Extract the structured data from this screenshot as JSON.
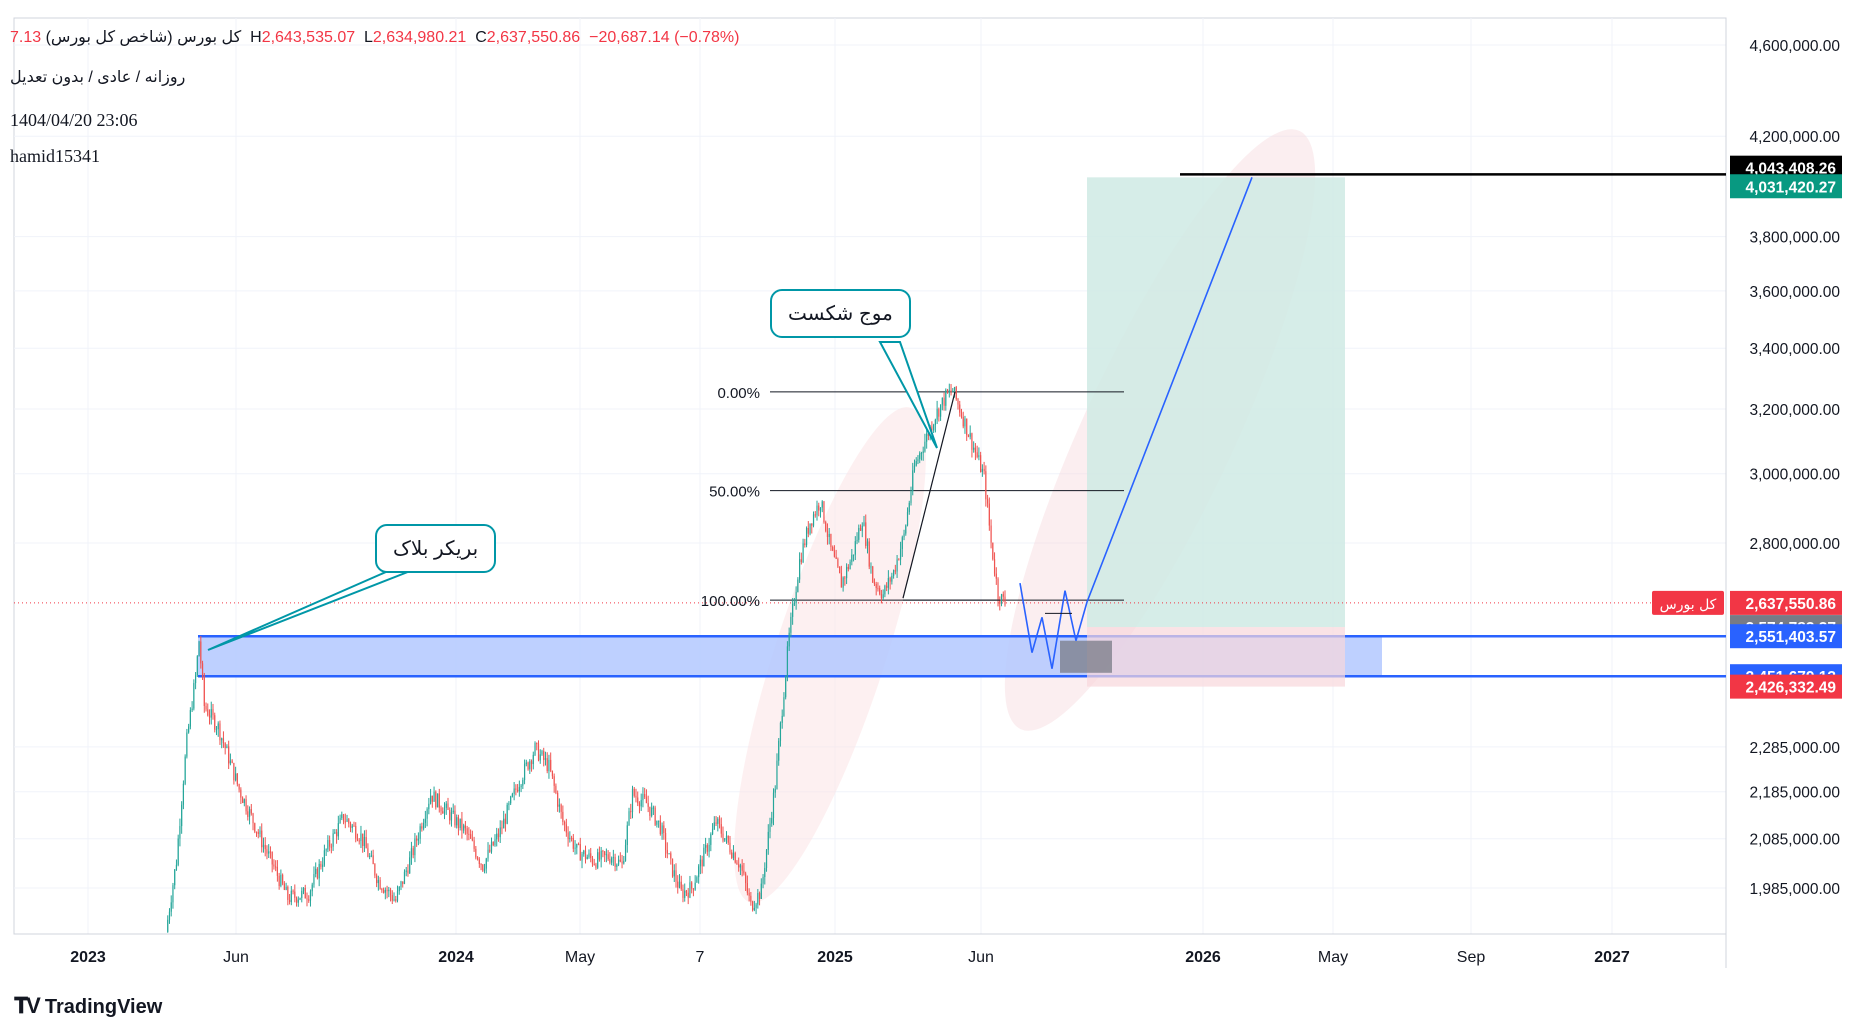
{
  "header": {
    "symbol_name": "کل بورس (شاخص کل بورس)",
    "open_fragment": "7.13",
    "high_label": "H",
    "high": "2,643,535.07",
    "low_label": "L",
    "low": "2,634,980.21",
    "close_label": "C",
    "close": "2,637,550.86",
    "change": "−20,687.14 (−0.78%)",
    "interval_line": "روزانه / عادی / بدون تعدیل",
    "datetime": "1404/04/20 23:06",
    "author": "hamid15341"
  },
  "annotations": {
    "breaker_block": "بریکر بلاک",
    "break_wave": "موج شکست"
  },
  "branding": {
    "logo_text": "TradingView"
  },
  "colors": {
    "up": "#26a69a",
    "down": "#ef5350",
    "price_line": "#f23645",
    "zone_fill": "#b3c8ff",
    "zone_border": "#2962ff",
    "target_fill": "#cfeae4",
    "stop_fill": "#f8d7dc",
    "projection": "#2962ff",
    "callout_border": "#0097a7"
  },
  "chart_data": {
    "type": "candlestick",
    "y_scale": "log",
    "ylim": [
      1910000,
      4800000
    ],
    "y_ticks": [
      {
        "value": 4600000,
        "label": "4,600,000.00"
      },
      {
        "value": 4200000,
        "label": "4,200,000.00"
      },
      {
        "value": 3800000,
        "label": "3,800,000.00"
      },
      {
        "value": 3600000,
        "label": "3,600,000.00"
      },
      {
        "value": 3400000,
        "label": "3,400,000.00"
      },
      {
        "value": 3200000,
        "label": "3,200,000.00"
      },
      {
        "value": 3000000,
        "label": "3,000,000.00"
      },
      {
        "value": 2800000,
        "label": "2,800,000.00"
      },
      {
        "value": 2285000,
        "label": "2,285,000.00"
      },
      {
        "value": 2185000,
        "label": "2,185,000.00"
      },
      {
        "value": 2085000,
        "label": "2,085,000.00"
      },
      {
        "value": 1985000,
        "label": "1,985,000.00"
      }
    ],
    "x_ticks": [
      {
        "label": "2023",
        "bold": true
      },
      {
        "label": "Jun",
        "bold": false
      },
      {
        "label": "2024",
        "bold": true
      },
      {
        "label": "May",
        "bold": false
      },
      {
        "label": "7",
        "bold": false
      },
      {
        "label": "2025",
        "bold": true
      },
      {
        "label": "Jun",
        "bold": false
      },
      {
        "label": "2026",
        "bold": true
      },
      {
        "label": "May",
        "bold": false
      },
      {
        "label": "Sep",
        "bold": false
      },
      {
        "label": "2027",
        "bold": true
      }
    ],
    "last_price": {
      "label": "کل بورس",
      "value": "2,637,550.86",
      "raw": 2637550.86
    },
    "price_badges": [
      {
        "value": "4,043,408.26",
        "raw": 4043408.26,
        "color": "#000000"
      },
      {
        "value": "4,031,420.27",
        "raw": 4031420.27,
        "color": "#089981"
      },
      {
        "value": "2,574,783.37",
        "raw": 2574783.37,
        "color": "#787b86"
      },
      {
        "value": "2,551,403.57",
        "raw": 2551403.57,
        "color": "#2962ff"
      },
      {
        "value": "2,451,679.13",
        "raw": 2451679.13,
        "color": "#2962ff"
      },
      {
        "value": "2,426,332.49",
        "raw": 2426332.49,
        "color": "#f23645"
      }
    ],
    "fibonacci": [
      {
        "label": "0.00%",
        "value": 3255000
      },
      {
        "label": "50.00%",
        "value": 2950000
      },
      {
        "label": "100.00%",
        "value": 2645000
      }
    ],
    "breaker_block": {
      "top": 2551403.57,
      "bottom": 2451679.13
    },
    "position": {
      "entry": 2574783.37,
      "target": 4031420.27,
      "stop": 2426332.49
    },
    "target_line": 4043408.26,
    "price_waypoints": [
      [
        0,
        1900000
      ],
      [
        6,
        2040000
      ],
      [
        12,
        2300000
      ],
      [
        17,
        2450000
      ],
      [
        19,
        2540000
      ],
      [
        22,
        2380000
      ],
      [
        30,
        2330000
      ],
      [
        42,
        2190000
      ],
      [
        55,
        2080000
      ],
      [
        70,
        1965000
      ],
      [
        82,
        1975000
      ],
      [
        92,
        2060000
      ],
      [
        102,
        2130000
      ],
      [
        112,
        2090000
      ],
      [
        122,
        2000000
      ],
      [
        132,
        1960000
      ],
      [
        142,
        2060000
      ],
      [
        152,
        2180000
      ],
      [
        162,
        2140000
      ],
      [
        172,
        2100000
      ],
      [
        182,
        2030000
      ],
      [
        192,
        2100000
      ],
      [
        202,
        2200000
      ],
      [
        212,
        2280000
      ],
      [
        220,
        2240000
      ],
      [
        228,
        2120000
      ],
      [
        236,
        2060000
      ],
      [
        246,
        2040000
      ],
      [
        256,
        2050000
      ],
      [
        262,
        2030000
      ],
      [
        268,
        2180000
      ],
      [
        276,
        2160000
      ],
      [
        284,
        2110000
      ],
      [
        290,
        2030000
      ],
      [
        296,
        1975000
      ],
      [
        302,
        1985000
      ],
      [
        310,
        2060000
      ],
      [
        316,
        2120000
      ],
      [
        322,
        2080000
      ],
      [
        330,
        2030000
      ],
      [
        336,
        1950000
      ],
      [
        342,
        1980000
      ],
      [
        350,
        2200000
      ],
      [
        358,
        2550000
      ],
      [
        364,
        2750000
      ],
      [
        370,
        2860000
      ],
      [
        376,
        2920000
      ],
      [
        382,
        2780000
      ],
      [
        388,
        2690000
      ],
      [
        394,
        2760000
      ],
      [
        400,
        2870000
      ],
      [
        406,
        2700000
      ],
      [
        412,
        2660000
      ],
      [
        418,
        2720000
      ],
      [
        424,
        2820000
      ],
      [
        430,
        3020000
      ],
      [
        436,
        3100000
      ],
      [
        442,
        3180000
      ],
      [
        448,
        3240000
      ],
      [
        452,
        3260000
      ],
      [
        458,
        3170000
      ],
      [
        464,
        3080000
      ],
      [
        470,
        2990000
      ],
      [
        474,
        2800000
      ],
      [
        478,
        2660000
      ],
      [
        482,
        2637550
      ]
    ]
  }
}
